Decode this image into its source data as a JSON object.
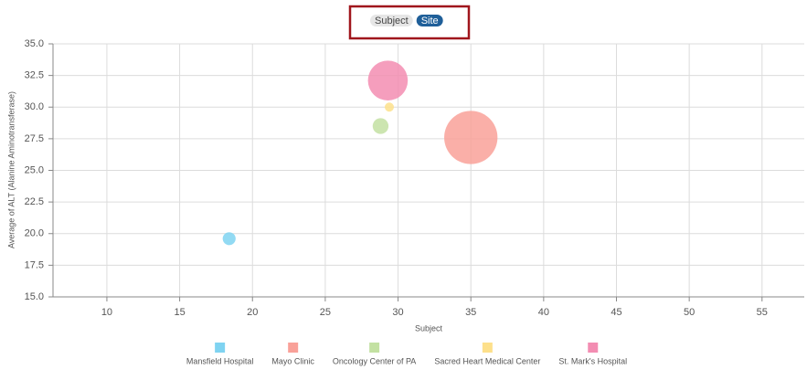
{
  "controls": {
    "options": [
      "Subject",
      "Site"
    ],
    "active": 1
  },
  "chart_data": {
    "type": "bubble",
    "x_label": "Subject",
    "y_label": "Average of ALT (Alanine Aminotransferase)",
    "xlim": [
      6.3,
      57.9
    ],
    "ylim": [
      15,
      35
    ],
    "xticks": [
      10,
      15,
      20,
      25,
      30,
      35,
      40,
      45,
      50,
      55
    ],
    "yticks": [
      {
        "value": 15,
        "label": "15.0"
      },
      {
        "value": 17.5,
        "label": "17.5"
      },
      {
        "value": 20,
        "label": "20.0"
      },
      {
        "value": 22.5,
        "label": "22.5"
      },
      {
        "value": 25,
        "label": "25.0"
      },
      {
        "value": 27.5,
        "label": "27.5"
      },
      {
        "value": 30,
        "label": "30.0"
      },
      {
        "value": 32.5,
        "label": "32.5"
      },
      {
        "value": 35,
        "label": "35.0"
      }
    ],
    "grid": true,
    "legend": "bottom",
    "series": [
      {
        "name": "Mansfield Hospital",
        "color": "#7fd3f1",
        "x": [
          18.4
        ],
        "values": [
          19.6
        ],
        "sizes": [
          2
        ]
      },
      {
        "name": "Mayo Clinic",
        "color": "#f9a199",
        "x": [
          35
        ],
        "values": [
          27.6
        ],
        "sizes": [
          34
        ]
      },
      {
        "name": "Oncology Center of PA",
        "color": "#c3e1a2",
        "x": [
          28.8
        ],
        "values": [
          28.5
        ],
        "sizes": [
          3
        ]
      },
      {
        "name": "Sacred Heart Medical Center",
        "color": "#fde08b",
        "x": [
          29.4
        ],
        "values": [
          30
        ],
        "sizes": [
          1
        ]
      },
      {
        "name": "St. Mark's Hospital",
        "color": "#f38db2",
        "x": [
          29.3
        ],
        "values": [
          32.1
        ],
        "sizes": [
          19
        ]
      }
    ]
  }
}
